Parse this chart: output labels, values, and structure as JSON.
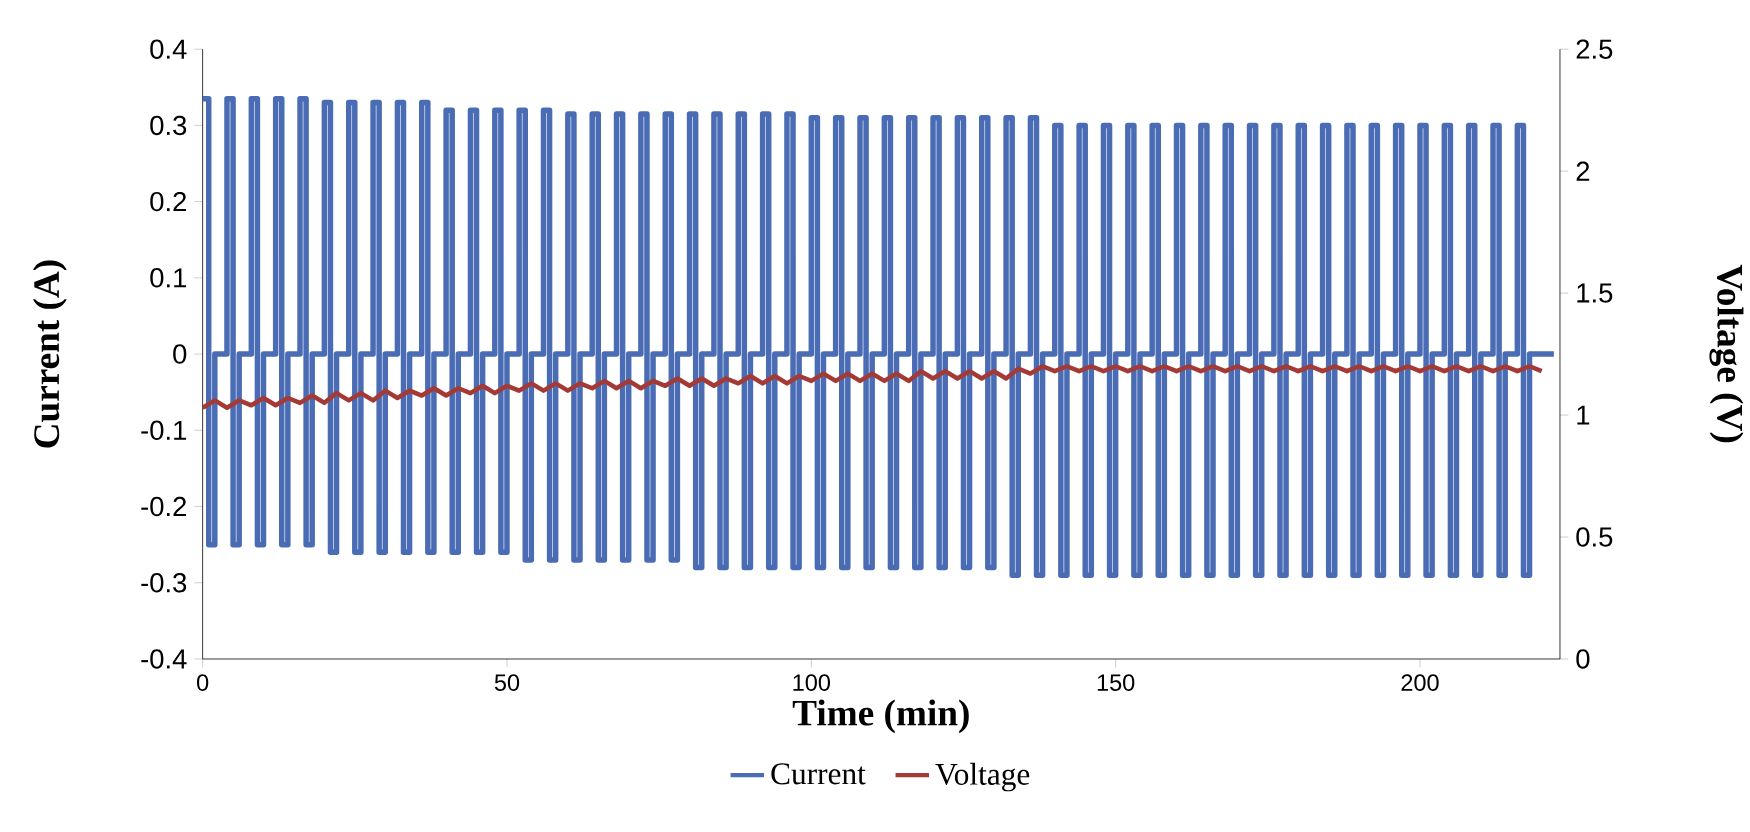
{
  "chart_data": {
    "type": "line",
    "xlabel": "Time (min)",
    "ylabel": "Current (A)",
    "y2label": "Voltage (V)",
    "xlim": [
      0,
      223
    ],
    "xticks": [
      0,
      50,
      100,
      150,
      200
    ],
    "ylim": [
      -0.4,
      0.4
    ],
    "yticks": [
      -0.4,
      -0.3,
      -0.2,
      -0.1,
      0,
      0.1,
      0.2,
      0.3,
      0.4
    ],
    "y2lim": [
      0,
      2.5
    ],
    "y2ticks": [
      0,
      0.5,
      1,
      1.5,
      2,
      2.5
    ],
    "legend": "bottom",
    "series": [
      {
        "name": "Current",
        "type": "step",
        "color": "#4a6cb5",
        "x": [
          0,
          1,
          2,
          4,
          5,
          6,
          8,
          9,
          10,
          12,
          13,
          14,
          16,
          17,
          18,
          20,
          21,
          22,
          24,
          25,
          26,
          28,
          29,
          30,
          32,
          33,
          34,
          36,
          37,
          38,
          40,
          41,
          42,
          44,
          45,
          46,
          48,
          49,
          50,
          52,
          53,
          54,
          56,
          57,
          58,
          60,
          61,
          62,
          64,
          65,
          66,
          68,
          69,
          70,
          72,
          73,
          74,
          76,
          77,
          78,
          80,
          81,
          82,
          84,
          85,
          86,
          88,
          89,
          90,
          92,
          93,
          94,
          96,
          97,
          98,
          100,
          101,
          102,
          104,
          105,
          106,
          108,
          109,
          110,
          112,
          113,
          114,
          116,
          117,
          118,
          120,
          121,
          122,
          124,
          125,
          126,
          128,
          129,
          130,
          132,
          133,
          134,
          136,
          137,
          138,
          140,
          141,
          142,
          144,
          145,
          146,
          148,
          149,
          150,
          152,
          153,
          154,
          156,
          157,
          158,
          160,
          161,
          162,
          164,
          165,
          166,
          168,
          169,
          170,
          172,
          173,
          174,
          176,
          177,
          178,
          180,
          181,
          182,
          184,
          185,
          186,
          188,
          189,
          190,
          192,
          193,
          194,
          196,
          197,
          198,
          200,
          201,
          202,
          204,
          205,
          206,
          208,
          209,
          210,
          212,
          213,
          214,
          216,
          217,
          218,
          222
        ],
        "values": [
          0.335,
          -0.25,
          0,
          0.335,
          -0.25,
          0,
          0.335,
          -0.25,
          0,
          0.335,
          -0.25,
          0,
          0.335,
          -0.25,
          0,
          0.33,
          -0.26,
          0,
          0.33,
          -0.26,
          0,
          0.33,
          -0.26,
          0,
          0.33,
          -0.26,
          0,
          0.33,
          -0.26,
          0,
          0.32,
          -0.26,
          0,
          0.32,
          -0.26,
          0,
          0.32,
          -0.26,
          0,
          0.32,
          -0.27,
          0,
          0.32,
          -0.27,
          0,
          0.315,
          -0.27,
          0,
          0.315,
          -0.27,
          0,
          0.315,
          -0.27,
          0,
          0.315,
          -0.27,
          0,
          0.315,
          -0.27,
          0,
          0.315,
          -0.28,
          0,
          0.315,
          -0.28,
          0,
          0.315,
          -0.28,
          0,
          0.315,
          -0.28,
          0,
          0.315,
          -0.28,
          0,
          0.31,
          -0.28,
          0,
          0.31,
          -0.28,
          0,
          0.31,
          -0.28,
          0,
          0.31,
          -0.28,
          0,
          0.31,
          -0.28,
          0,
          0.31,
          -0.28,
          0,
          0.31,
          -0.28,
          0,
          0.31,
          -0.28,
          0,
          0.31,
          -0.29,
          0,
          0.31,
          -0.29,
          0,
          0.3,
          -0.29,
          0,
          0.3,
          -0.29,
          0,
          0.3,
          -0.29,
          0,
          0.3,
          -0.29,
          0,
          0.3,
          -0.29,
          0,
          0.3,
          -0.29,
          0,
          0.3,
          -0.29,
          0,
          0.3,
          -0.29,
          0,
          0.3,
          -0.29,
          0,
          0.3,
          -0.29,
          0,
          0.3,
          -0.29,
          0,
          0.3,
          -0.29,
          0,
          0.3,
          -0.29,
          0,
          0.3,
          -0.29,
          0,
          0.3,
          -0.29,
          0,
          0.3,
          -0.29,
          0,
          0.3,
          -0.29,
          0,
          0.3,
          -0.29,
          0,
          0.3,
          -0.29,
          0,
          0.3,
          -0.29,
          0,
          0
        ]
      },
      {
        "name": "Voltage",
        "type": "line",
        "axis": "y2",
        "color": "#a33a36",
        "x": [
          0,
          2,
          4,
          6,
          8,
          10,
          12,
          14,
          16,
          18,
          20,
          22,
          24,
          26,
          28,
          30,
          32,
          34,
          36,
          38,
          40,
          42,
          44,
          46,
          48,
          50,
          52,
          54,
          56,
          58,
          60,
          62,
          64,
          66,
          68,
          70,
          72,
          74,
          76,
          78,
          80,
          82,
          84,
          86,
          88,
          90,
          92,
          94,
          96,
          98,
          100,
          102,
          104,
          106,
          108,
          110,
          112,
          114,
          116,
          118,
          120,
          122,
          124,
          126,
          128,
          130,
          132,
          134,
          136,
          138,
          140,
          142,
          144,
          146,
          148,
          150,
          152,
          154,
          156,
          158,
          160,
          162,
          164,
          166,
          168,
          170,
          172,
          174,
          176,
          178,
          180,
          182,
          184,
          186,
          188,
          190,
          192,
          194,
          196,
          198,
          200,
          202,
          204,
          206,
          208,
          210,
          212,
          214,
          216,
          218,
          220
        ],
        "values": [
          1.03,
          1.06,
          1.03,
          1.06,
          1.04,
          1.07,
          1.04,
          1.07,
          1.05,
          1.08,
          1.05,
          1.09,
          1.06,
          1.09,
          1.06,
          1.1,
          1.07,
          1.1,
          1.08,
          1.11,
          1.08,
          1.11,
          1.09,
          1.12,
          1.09,
          1.12,
          1.1,
          1.13,
          1.1,
          1.13,
          1.1,
          1.13,
          1.11,
          1.14,
          1.11,
          1.14,
          1.11,
          1.14,
          1.12,
          1.15,
          1.12,
          1.15,
          1.12,
          1.15,
          1.13,
          1.16,
          1.13,
          1.16,
          1.13,
          1.16,
          1.14,
          1.17,
          1.14,
          1.17,
          1.14,
          1.17,
          1.14,
          1.17,
          1.14,
          1.18,
          1.15,
          1.18,
          1.15,
          1.18,
          1.15,
          1.18,
          1.15,
          1.19,
          1.17,
          1.2,
          1.18,
          1.2,
          1.18,
          1.2,
          1.18,
          1.2,
          1.18,
          1.2,
          1.18,
          1.2,
          1.18,
          1.2,
          1.18,
          1.2,
          1.18,
          1.2,
          1.18,
          1.2,
          1.18,
          1.2,
          1.18,
          1.2,
          1.18,
          1.2,
          1.18,
          1.2,
          1.18,
          1.2,
          1.18,
          1.2,
          1.18,
          1.2,
          1.18,
          1.2,
          1.18,
          1.2,
          1.18,
          1.2,
          1.18,
          1.2,
          1.18
        ]
      }
    ]
  }
}
